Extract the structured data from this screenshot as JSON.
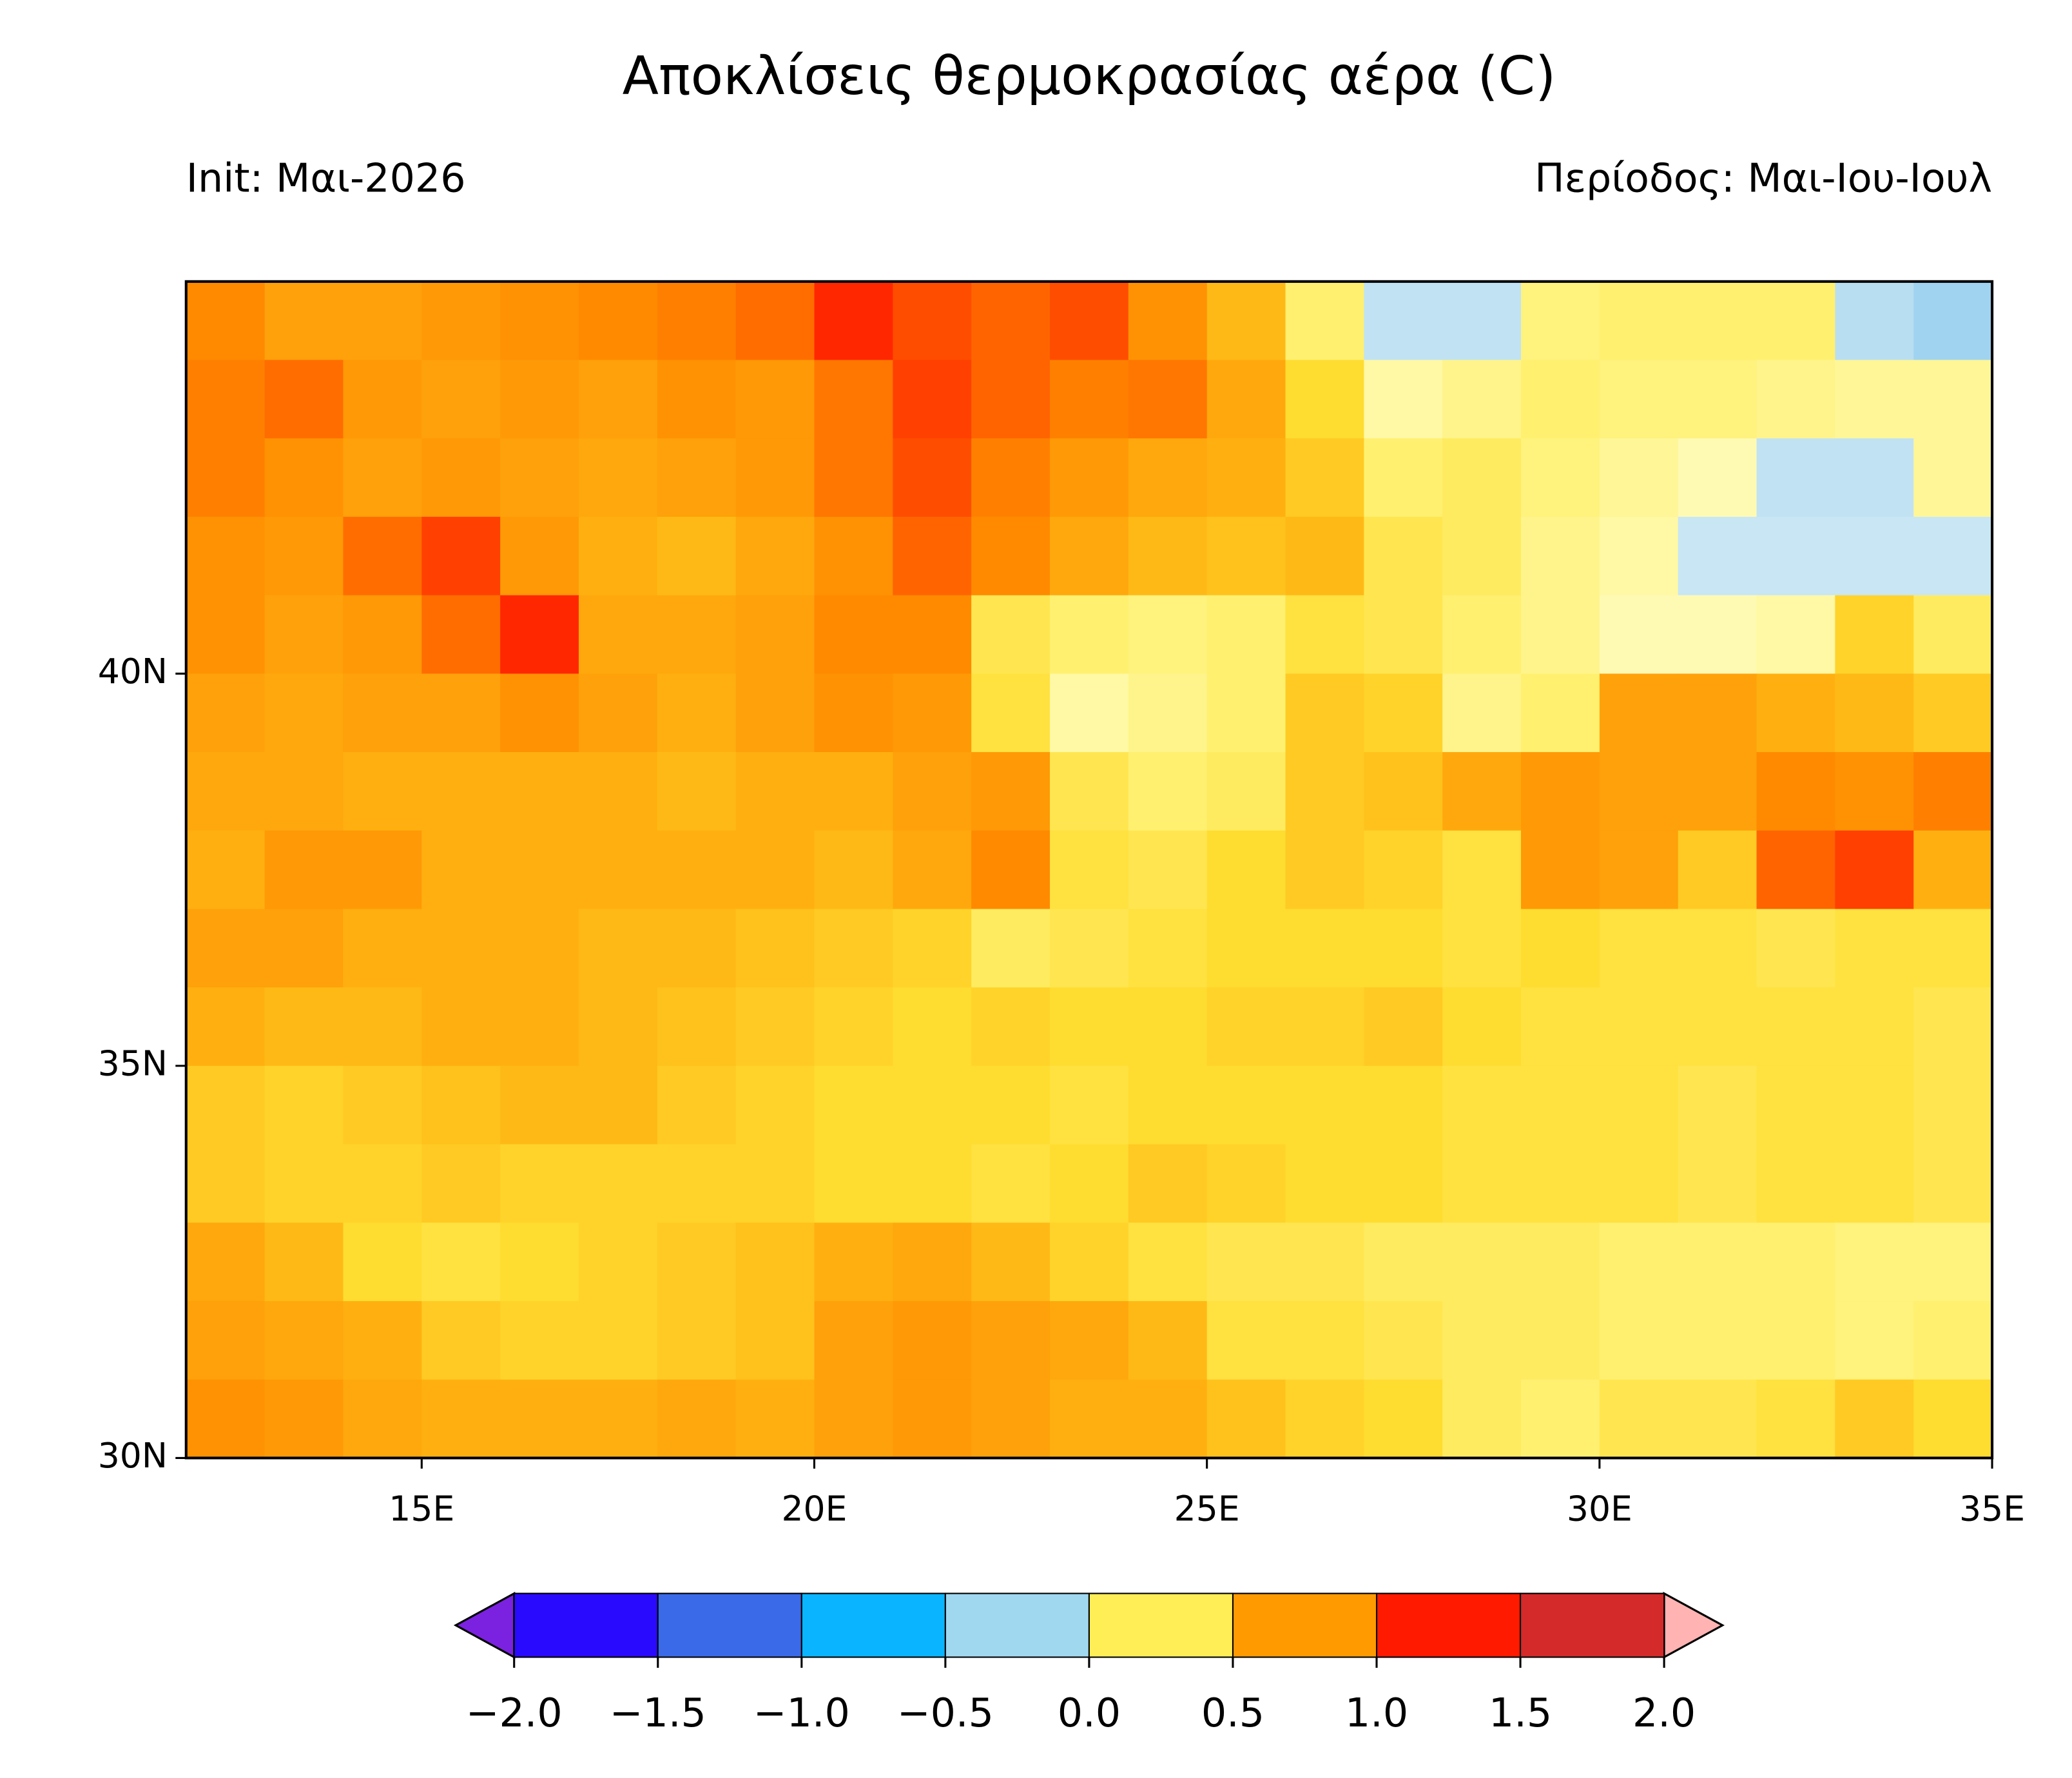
{
  "chart_data": {
    "type": "heatmap",
    "title": "Αποκλίσεις θερμοκρασίας  αέρα (C)",
    "subtitle_left": "Init: Μαι-2026",
    "subtitle_right": "Περίοδος: Μαι-Ιου-Ιουλ",
    "xlim": [
      12,
      35
    ],
    "ylim": [
      30,
      45
    ],
    "xticks": [
      {
        "value": 15,
        "label": "15E"
      },
      {
        "value": 20,
        "label": "20E"
      },
      {
        "value": 25,
        "label": "25E"
      },
      {
        "value": 30,
        "label": "30E"
      },
      {
        "value": 35,
        "label": "35E"
      }
    ],
    "yticks": [
      {
        "value": 30,
        "label": "30N"
      },
      {
        "value": 35,
        "label": "35N"
      },
      {
        "value": 40,
        "label": "40N"
      }
    ],
    "values": [
      [
        1.0,
        0.85,
        0.85,
        0.9,
        0.95,
        1.0,
        1.05,
        1.15,
        1.45,
        1.3,
        1.2,
        1.3,
        0.95,
        0.7,
        0.3,
        -0.1,
        -0.1,
        0.25,
        0.3,
        0.3,
        0.3,
        -0.15,
        -0.3
      ],
      [
        1.05,
        1.15,
        0.9,
        0.85,
        0.9,
        0.85,
        0.95,
        0.9,
        1.1,
        1.35,
        1.2,
        1.05,
        1.1,
        0.8,
        0.5,
        0.1,
        0.2,
        0.3,
        0.25,
        0.25,
        0.2,
        0.15,
        0.15
      ],
      [
        1.05,
        0.95,
        0.85,
        0.9,
        0.85,
        0.8,
        0.85,
        0.9,
        1.1,
        1.3,
        1.05,
        0.9,
        0.8,
        0.75,
        0.6,
        0.3,
        0.35,
        0.25,
        0.15,
        0.05,
        -0.1,
        -0.1,
        0.15
      ],
      [
        0.95,
        0.9,
        1.15,
        1.35,
        0.9,
        0.75,
        0.7,
        0.8,
        0.95,
        1.2,
        1.0,
        0.8,
        0.7,
        0.65,
        0.7,
        0.4,
        0.35,
        0.2,
        0.1,
        -0.05,
        -0.05,
        -0.05,
        -0.05
      ],
      [
        0.95,
        0.85,
        0.9,
        1.15,
        1.45,
        0.8,
        0.8,
        0.85,
        1.0,
        1.0,
        0.4,
        0.3,
        0.25,
        0.3,
        0.45,
        0.4,
        0.3,
        0.2,
        0.05,
        0.05,
        0.1,
        0.55,
        0.35
      ],
      [
        0.85,
        0.8,
        0.85,
        0.85,
        0.95,
        0.85,
        0.75,
        0.85,
        0.95,
        0.9,
        0.45,
        0.1,
        0.2,
        0.3,
        0.6,
        0.55,
        0.2,
        0.3,
        0.85,
        0.85,
        0.75,
        0.7,
        0.6
      ],
      [
        0.8,
        0.8,
        0.75,
        0.75,
        0.75,
        0.75,
        0.7,
        0.75,
        0.75,
        0.85,
        0.9,
        0.4,
        0.3,
        0.35,
        0.6,
        0.65,
        0.8,
        0.9,
        0.85,
        0.85,
        1.0,
        0.95,
        1.05
      ],
      [
        0.75,
        0.9,
        0.9,
        0.75,
        0.75,
        0.75,
        0.75,
        0.75,
        0.7,
        0.8,
        1.0,
        0.45,
        0.4,
        0.5,
        0.6,
        0.55,
        0.45,
        0.9,
        0.85,
        0.6,
        1.2,
        1.35,
        0.75
      ],
      [
        0.85,
        0.85,
        0.75,
        0.75,
        0.75,
        0.7,
        0.7,
        0.65,
        0.6,
        0.55,
        0.35,
        0.4,
        0.45,
        0.5,
        0.5,
        0.5,
        0.45,
        0.5,
        0.45,
        0.45,
        0.4,
        0.45,
        0.45
      ],
      [
        0.75,
        0.7,
        0.7,
        0.75,
        0.75,
        0.7,
        0.65,
        0.6,
        0.55,
        0.5,
        0.55,
        0.5,
        0.5,
        0.55,
        0.55,
        0.6,
        0.5,
        0.45,
        0.45,
        0.45,
        0.45,
        0.45,
        0.4
      ],
      [
        0.6,
        0.55,
        0.6,
        0.65,
        0.7,
        0.7,
        0.6,
        0.55,
        0.5,
        0.5,
        0.5,
        0.45,
        0.5,
        0.5,
        0.5,
        0.5,
        0.45,
        0.45,
        0.45,
        0.4,
        0.45,
        0.45,
        0.4
      ],
      [
        0.6,
        0.55,
        0.55,
        0.6,
        0.55,
        0.55,
        0.55,
        0.55,
        0.5,
        0.5,
        0.45,
        0.5,
        0.6,
        0.55,
        0.5,
        0.5,
        0.45,
        0.45,
        0.45,
        0.4,
        0.45,
        0.45,
        0.4
      ],
      [
        0.8,
        0.7,
        0.5,
        0.45,
        0.5,
        0.55,
        0.6,
        0.65,
        0.75,
        0.8,
        0.7,
        0.55,
        0.45,
        0.4,
        0.4,
        0.35,
        0.35,
        0.35,
        0.3,
        0.3,
        0.3,
        0.25,
        0.25
      ],
      [
        0.85,
        0.8,
        0.75,
        0.6,
        0.55,
        0.55,
        0.6,
        0.65,
        0.85,
        0.9,
        0.85,
        0.8,
        0.7,
        0.45,
        0.45,
        0.4,
        0.35,
        0.35,
        0.3,
        0.3,
        0.3,
        0.25,
        0.3
      ],
      [
        0.95,
        0.9,
        0.8,
        0.75,
        0.75,
        0.75,
        0.8,
        0.75,
        0.85,
        0.9,
        0.85,
        0.75,
        0.75,
        0.65,
        0.55,
        0.5,
        0.35,
        0.3,
        0.4,
        0.4,
        0.45,
        0.6,
        0.5
      ]
    ],
    "shading": [
      {
        "value": -0.5,
        "color": "#7fc4ec"
      },
      {
        "value": -0.01,
        "color": "#cfe9f5"
      },
      {
        "value": 0,
        "color": "#fffcc0"
      },
      {
        "value": 0.3,
        "color": "#fff070"
      },
      {
        "value": 0.5,
        "color": "#ffdc30"
      },
      {
        "value": 0.75,
        "color": "#ffb010"
      },
      {
        "value": 1.0,
        "color": "#ff8a00"
      },
      {
        "value": 1.25,
        "color": "#ff5a00"
      },
      {
        "value": 1.5,
        "color": "#ff1a00"
      }
    ],
    "colorbar": {
      "ticks": [
        {
          "value": -2.0,
          "label": "−2.0"
        },
        {
          "value": -1.5,
          "label": "−1.5"
        },
        {
          "value": -1.0,
          "label": "−1.0"
        },
        {
          "value": -0.5,
          "label": "−0.5"
        },
        {
          "value": 0.0,
          "label": "0.0"
        },
        {
          "value": 0.5,
          "label": "0.5"
        },
        {
          "value": 1.0,
          "label": "1.0"
        },
        {
          "value": 1.5,
          "label": "1.5"
        },
        {
          "value": 2.0,
          "label": "2.0"
        }
      ],
      "colors": [
        "#2a0aff",
        "#3a6ae8",
        "#0ab4ff",
        "#a0d8f0",
        "#ffee55",
        "#ff9a00",
        "#ff1a00",
        "#d42a2a"
      ],
      "under": "#7b22e0",
      "over": "#ffb3b3"
    }
  }
}
